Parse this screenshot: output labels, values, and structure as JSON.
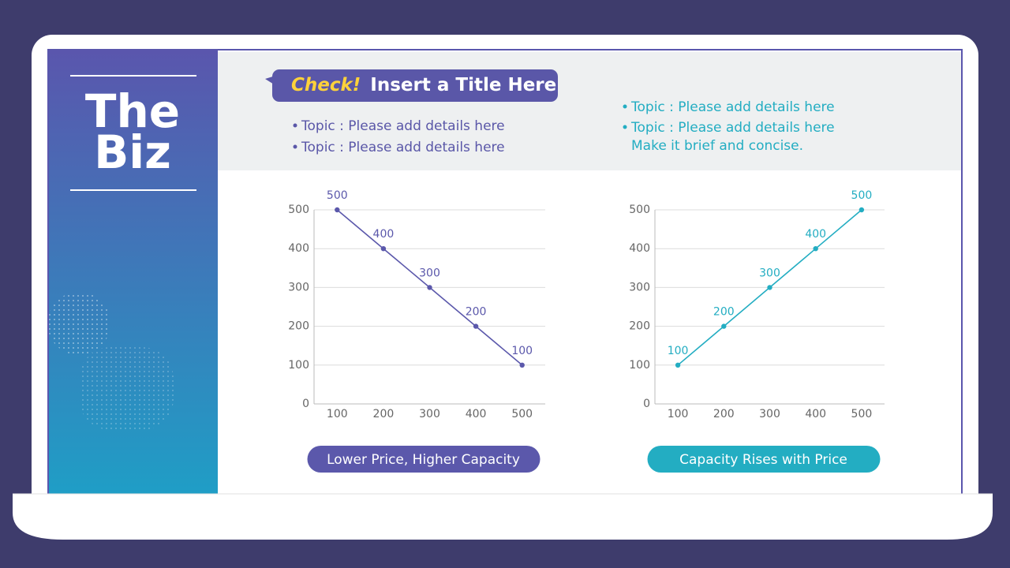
{
  "slide": {
    "brand": [
      "The",
      "Biz"
    ],
    "title_accent": "Check!",
    "title": "Insert a Title Here",
    "left_bullets": [
      "Topic : Please add details here",
      "Topic : Please add details here"
    ],
    "right_bullets": [
      "Topic : Please add details here",
      "Topic : Please add details here"
    ],
    "right_note": "Make it brief and concise."
  },
  "chart_data": [
    {
      "type": "line",
      "title": "Lower Price, Higher Capacity",
      "x": [
        100,
        200,
        300,
        400,
        500
      ],
      "values": [
        500,
        400,
        300,
        200,
        100
      ],
      "color": "#5b58ab",
      "xlim": [
        50,
        550
      ],
      "xticks": [
        100,
        200,
        300,
        400,
        500
      ],
      "ylim": [
        0,
        500
      ],
      "yticks": [
        0,
        100,
        200,
        300,
        400,
        500
      ],
      "grid": true
    },
    {
      "type": "line",
      "title": "Capacity Rises with Price",
      "x": [
        100,
        200,
        300,
        400,
        500
      ],
      "values": [
        100,
        200,
        300,
        400,
        500
      ],
      "color": "#23adc2",
      "xlim": [
        50,
        550
      ],
      "xticks": [
        100,
        200,
        300,
        400,
        500
      ],
      "ylim": [
        0,
        500
      ],
      "yticks": [
        0,
        100,
        200,
        300,
        400,
        500
      ],
      "grid": true
    }
  ]
}
